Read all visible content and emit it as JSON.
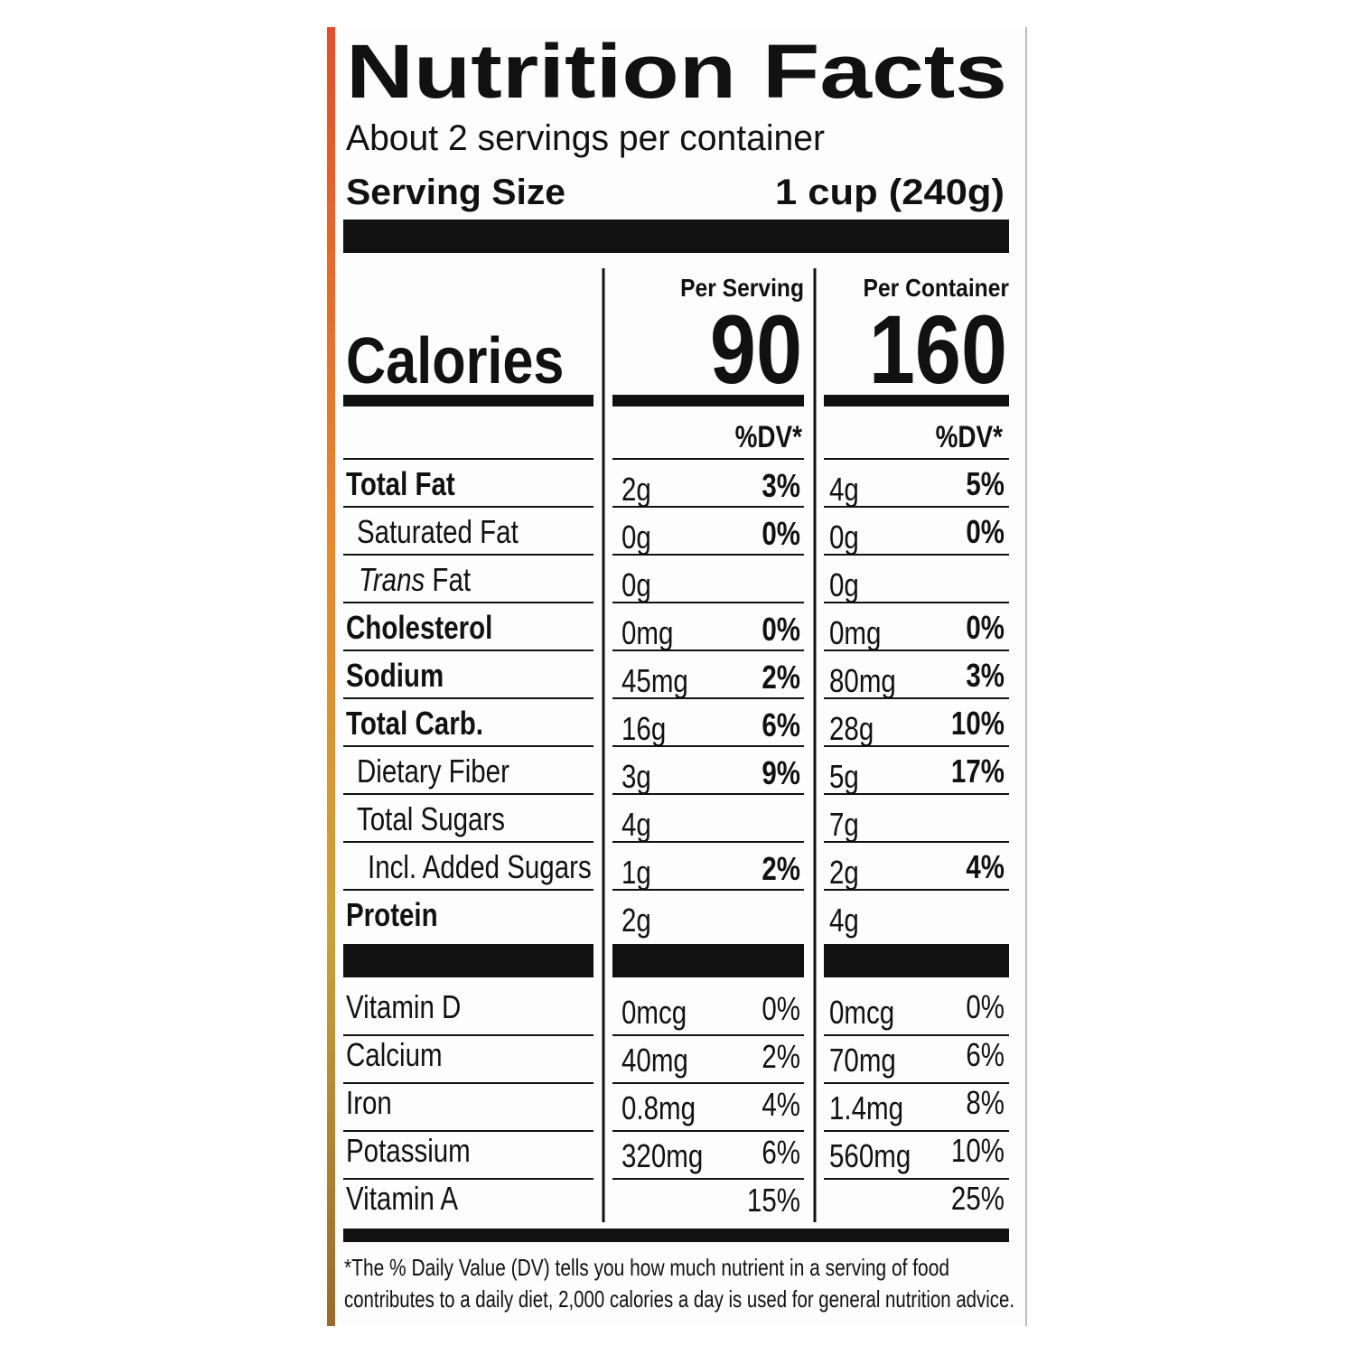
{
  "header": {
    "title": "Nutrition Facts",
    "servings": "About 2 servings per container",
    "serving_size_label": "Serving Size",
    "serving_size_value": "1 cup (240g)"
  },
  "columns": [
    "Per Serving",
    "Per Container"
  ],
  "calories": {
    "label": "Calories",
    "values": [
      "90",
      "160"
    ]
  },
  "dv_headers": [
    "%DV*",
    "%DV*"
  ],
  "nutrients": [
    {
      "label": "Total Fat",
      "amount_serving": "2g",
      "dv_serving": "3%",
      "amount_container": "4g",
      "dv_container": "5%"
    },
    {
      "label": "Saturated Fat",
      "amount_serving": "0g",
      "dv_serving": "0%",
      "amount_container": "0g",
      "dv_container": "0%"
    },
    {
      "label_italic": "Trans",
      "label": "Fat",
      "amount_serving": "0g",
      "amount_container": "0g"
    },
    {
      "label": "Cholesterol",
      "amount_serving": "0mg",
      "dv_serving": "0%",
      "amount_container": "0mg",
      "dv_container": "0%"
    },
    {
      "label": "Sodium",
      "amount_serving": "45mg",
      "dv_serving": "2%",
      "amount_container": "80mg",
      "dv_container": "3%"
    },
    {
      "label": "Total Carb.",
      "amount_serving": "16g",
      "dv_serving": "6%",
      "amount_container": "28g",
      "dv_container": "10%"
    },
    {
      "label": "Dietary Fiber",
      "amount_serving": "3g",
      "dv_serving": "9%",
      "amount_container": "5g",
      "dv_container": "17%"
    },
    {
      "label": "Total Sugars",
      "amount_serving": "4g",
      "amount_container": "7g"
    },
    {
      "label": "Incl. Added Sugars",
      "amount_serving": "1g",
      "dv_serving": "2%",
      "amount_container": "2g",
      "dv_container": "4%"
    },
    {
      "label": "Protein",
      "amount_serving": "2g",
      "amount_container": "4g"
    }
  ],
  "vitamins": [
    {
      "label": "Vitamin D",
      "amount_serving": "0mcg",
      "dv_serving": "0%",
      "amount_container": "0mcg",
      "dv_container": "0%"
    },
    {
      "label": "Calcium",
      "amount_serving": "40mg",
      "dv_serving": "2%",
      "amount_container": "70mg",
      "dv_container": "6%"
    },
    {
      "label": "Iron",
      "amount_serving": "0.8mg",
      "dv_serving": "4%",
      "amount_container": "1.4mg",
      "dv_container": "8%"
    },
    {
      "label": "Potassium",
      "amount_serving": "320mg",
      "dv_serving": "6%",
      "amount_container": "560mg",
      "dv_container": "10%"
    },
    {
      "label": "Vitamin A",
      "dv_serving": "15%",
      "dv_container": "25%"
    }
  ],
  "footnote": [
    "*The % Daily Value (DV) tells you how much nutrient in a serving of food",
    "contributes to a daily diet, 2,000 calories a day is used for general nutrition advice."
  ]
}
